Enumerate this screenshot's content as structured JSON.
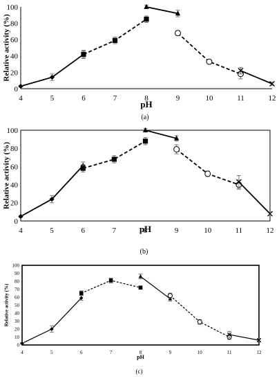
{
  "chart_data": [
    {
      "type": "line",
      "panel_label": "(a)",
      "xlabel": "pH",
      "ylabel": "Relative activity (%)",
      "xlim": [
        4,
        12
      ],
      "ylim": [
        0,
        100
      ],
      "x_ticks": [
        "4",
        "5",
        "6",
        "7",
        "8",
        "9",
        "10",
        "11",
        "12"
      ],
      "y_ticks": [
        "0",
        "20",
        "40",
        "60",
        "80",
        "100"
      ],
      "grid": false,
      "frame": "axes",
      "series": [
        {
          "marker": "diamond",
          "line": "solid",
          "x": [
            4,
            5,
            6
          ],
          "y": [
            3,
            14,
            42
          ],
          "err": [
            1,
            4,
            5
          ]
        },
        {
          "marker": "square",
          "line": "dashed",
          "x": [
            6,
            7,
            8
          ],
          "y": [
            42,
            59,
            85
          ],
          "err": [
            4,
            4,
            4
          ]
        },
        {
          "marker": "triangle",
          "line": "solid",
          "x": [
            8,
            9
          ],
          "y": [
            100,
            92
          ],
          "err": [
            2,
            4
          ]
        },
        {
          "marker": "circle",
          "line": "dashed",
          "x": [
            9,
            10,
            11
          ],
          "y": [
            68,
            33,
            18
          ],
          "err": [
            3,
            2,
            6
          ]
        },
        {
          "marker": "cross",
          "line": "solid",
          "x": [
            11,
            12
          ],
          "y": [
            22,
            6
          ],
          "err": [
            4,
            2
          ]
        }
      ]
    },
    {
      "type": "line",
      "panel_label": "(b)",
      "xlabel": "pH",
      "ylabel": "Relative activity (%)",
      "xlim": [
        4,
        12
      ],
      "ylim": [
        0,
        100
      ],
      "x_ticks": [
        "4",
        "5",
        "6",
        "7",
        "8",
        "9",
        "10",
        "11",
        "12"
      ],
      "y_ticks": [
        "0",
        "20",
        "40",
        "60",
        "80",
        "100"
      ],
      "grid": false,
      "frame": "box",
      "series": [
        {
          "marker": "diamond",
          "line": "solid",
          "x": [
            4,
            5,
            6
          ],
          "y": [
            5,
            24,
            61
          ],
          "err": [
            1,
            4,
            4
          ]
        },
        {
          "marker": "square",
          "line": "dashed",
          "x": [
            6,
            7,
            8
          ],
          "y": [
            58,
            68,
            88
          ],
          "err": [
            4,
            4,
            4
          ]
        },
        {
          "marker": "triangle",
          "line": "solid",
          "x": [
            8,
            9
          ],
          "y": [
            100,
            91
          ],
          "err": [
            2,
            3
          ]
        },
        {
          "marker": "circle",
          "line": "dashed",
          "x": [
            9,
            10,
            11
          ],
          "y": [
            79,
            52,
            40
          ],
          "err": [
            5,
            3,
            5
          ]
        },
        {
          "marker": "cross",
          "line": "solid",
          "x": [
            11,
            12
          ],
          "y": [
            43,
            8
          ],
          "err": [
            7,
            2
          ]
        }
      ]
    },
    {
      "type": "line",
      "panel_label": "(c)",
      "xlabel": "pH",
      "ylabel": "Relative activity (%)",
      "xlim": [
        4,
        12
      ],
      "ylim": [
        0,
        100
      ],
      "x_ticks": [
        "4",
        "5",
        "6",
        "7",
        "8",
        "9",
        "10",
        "11",
        "12"
      ],
      "y_ticks": [
        "0",
        "10",
        "20",
        "30",
        "40",
        "50",
        "60",
        "70",
        "80",
        "90",
        "100"
      ],
      "grid": false,
      "frame": "box",
      "series": [
        {
          "marker": "diamond",
          "line": "solid",
          "x": [
            4,
            5,
            6
          ],
          "y": [
            2,
            20,
            59
          ],
          "err": [
            1,
            4,
            3
          ]
        },
        {
          "marker": "square",
          "line": "dashed",
          "x": [
            6,
            7,
            8
          ],
          "y": [
            65,
            81,
            72
          ],
          "err": [
            3,
            3,
            2
          ]
        },
        {
          "marker": "triangle",
          "line": "solid",
          "x": [
            8,
            9
          ],
          "y": [
            86,
            58
          ],
          "err": [
            3,
            3
          ]
        },
        {
          "marker": "circle",
          "line": "dashed",
          "x": [
            9,
            10,
            11
          ],
          "y": [
            62,
            29,
            10
          ],
          "err": [
            3,
            3,
            3
          ]
        },
        {
          "marker": "cross",
          "line": "solid",
          "x": [
            11,
            12
          ],
          "y": [
            13,
            6
          ],
          "err": [
            4,
            2
          ]
        }
      ]
    }
  ]
}
